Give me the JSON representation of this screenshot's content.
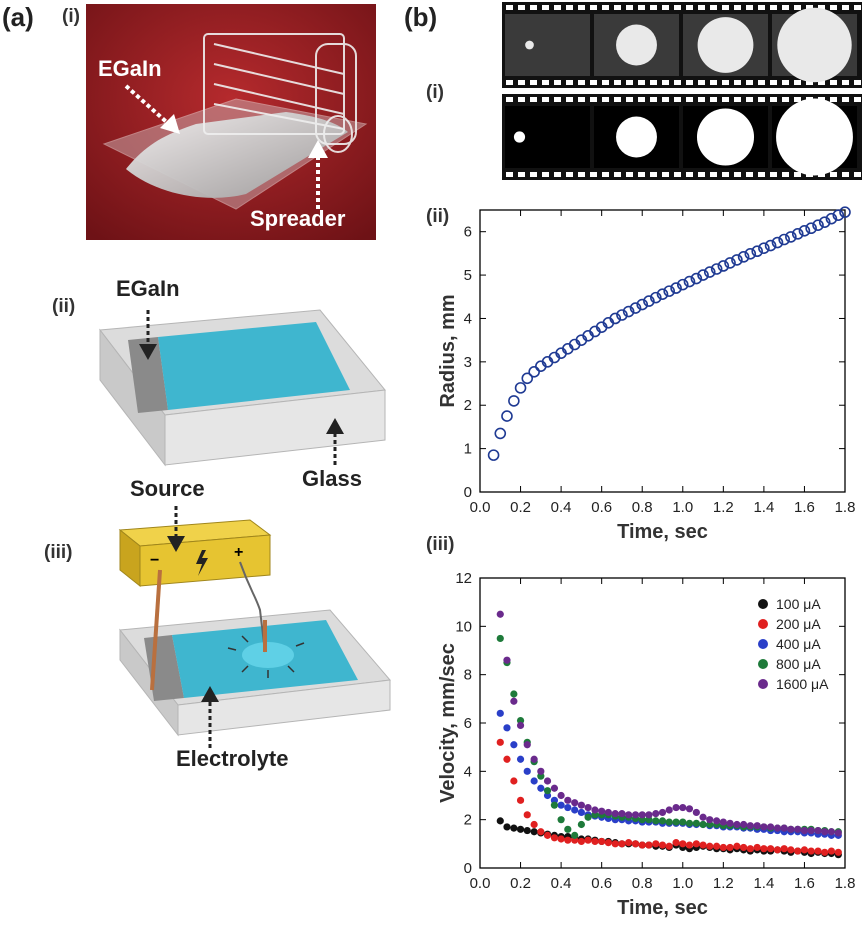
{
  "panel_a": {
    "label": "(a)",
    "sub_i": "(i)",
    "sub_ii": "(ii)",
    "sub_iii": "(iii)",
    "photo_labels": {
      "egain": "EGaIn",
      "spreader": "Spreader"
    },
    "schematic_ii_labels": {
      "egain": "EGaIn",
      "glass": "Glass"
    },
    "schematic_iii_labels": {
      "source": "Source",
      "minus": "−",
      "plus": "+",
      "electrolyte": "Electrolyte"
    }
  },
  "panel_b": {
    "label": "(b)",
    "sub_i": "(i)",
    "sub_ii": "(ii)",
    "sub_iii": "(iii)"
  },
  "colors": {
    "photo_background": "#9b1f24",
    "electrolyte_blue": "#3fb6cf",
    "metal_gray": "#8a8a8a",
    "glass": "#d9d9d9",
    "battery": "#e6c431",
    "wire": "#b9703f"
  },
  "filmstrip": {
    "top_radii": [
      0.07,
      0.33,
      0.45,
      0.6
    ],
    "bottom_radii": [
      0.09,
      0.33,
      0.46,
      0.62
    ]
  },
  "chart_data": [
    {
      "type": "scatter",
      "title": "",
      "xlabel": "Time, sec",
      "ylabel": "Radius, mm",
      "xlim": [
        0.0,
        1.8
      ],
      "ylim": [
        0,
        6.5
      ],
      "xticks": [
        "0.0",
        "0.2",
        "0.4",
        "0.6",
        "0.8",
        "1.0",
        "1.2",
        "1.4",
        "1.6",
        "1.8"
      ],
      "yticks": [
        "0",
        "1",
        "2",
        "3",
        "4",
        "5",
        "6"
      ],
      "marker": "open-circle",
      "color": "#1f3a93",
      "x": [
        0.067,
        0.1,
        0.133,
        0.167,
        0.2,
        0.233,
        0.267,
        0.3,
        0.333,
        0.367,
        0.4,
        0.433,
        0.467,
        0.5,
        0.533,
        0.567,
        0.6,
        0.633,
        0.667,
        0.7,
        0.733,
        0.767,
        0.8,
        0.833,
        0.867,
        0.9,
        0.933,
        0.967,
        1.0,
        1.033,
        1.067,
        1.1,
        1.133,
        1.167,
        1.2,
        1.233,
        1.267,
        1.3,
        1.333,
        1.367,
        1.4,
        1.433,
        1.467,
        1.5,
        1.533,
        1.567,
        1.6,
        1.633,
        1.667,
        1.7,
        1.733,
        1.767,
        1.8
      ],
      "y": [
        0.85,
        1.35,
        1.75,
        2.1,
        2.4,
        2.62,
        2.77,
        2.9,
        3.0,
        3.1,
        3.2,
        3.3,
        3.4,
        3.5,
        3.6,
        3.7,
        3.8,
        3.9,
        4.0,
        4.08,
        4.16,
        4.24,
        4.32,
        4.4,
        4.48,
        4.56,
        4.63,
        4.7,
        4.78,
        4.85,
        4.92,
        5.0,
        5.07,
        5.14,
        5.21,
        5.28,
        5.35,
        5.42,
        5.49,
        5.55,
        5.62,
        5.68,
        5.75,
        5.82,
        5.88,
        5.95,
        6.02,
        6.08,
        6.15,
        6.22,
        6.3,
        6.38,
        6.45
      ]
    },
    {
      "type": "scatter",
      "title": "",
      "xlabel": "Time, sec",
      "ylabel": "Velocity, mm/sec",
      "xlim": [
        0.0,
        1.8
      ],
      "ylim": [
        0,
        12
      ],
      "xticks": [
        "0.0",
        "0.2",
        "0.4",
        "0.6",
        "0.8",
        "1.0",
        "1.2",
        "1.4",
        "1.6",
        "1.8"
      ],
      "yticks": [
        "0",
        "2",
        "4",
        "6",
        "8",
        "10",
        "12"
      ],
      "legend_position": "top-right",
      "series": [
        {
          "name": "100 μA",
          "color": "#111111",
          "x": [
            0.1,
            0.133,
            0.167,
            0.2,
            0.233,
            0.267,
            0.3,
            0.333,
            0.367,
            0.4,
            0.433,
            0.467,
            0.5,
            0.533,
            0.567,
            0.6,
            0.633,
            0.667,
            0.7,
            0.733,
            0.767,
            0.8,
            0.833,
            0.867,
            0.9,
            0.933,
            0.967,
            1.0,
            1.033,
            1.067,
            1.1,
            1.133,
            1.167,
            1.2,
            1.233,
            1.267,
            1.3,
            1.333,
            1.367,
            1.4,
            1.433,
            1.467,
            1.5,
            1.533,
            1.567,
            1.6,
            1.633,
            1.667,
            1.7,
            1.733,
            1.767
          ],
          "y": [
            1.95,
            1.7,
            1.65,
            1.6,
            1.55,
            1.5,
            1.45,
            1.4,
            1.35,
            1.3,
            1.3,
            1.25,
            1.2,
            1.2,
            1.15,
            1.1,
            1.1,
            1.05,
            1.0,
            1.0,
            1.0,
            0.95,
            0.95,
            0.9,
            0.9,
            0.85,
            0.95,
            0.85,
            0.8,
            0.85,
            0.9,
            0.85,
            0.8,
            0.8,
            0.75,
            0.8,
            0.75,
            0.7,
            0.75,
            0.7,
            0.7,
            0.75,
            0.7,
            0.65,
            0.7,
            0.65,
            0.6,
            0.65,
            0.6,
            0.6,
            0.55
          ]
        },
        {
          "name": "200 μA",
          "color": "#e02020",
          "x": [
            0.1,
            0.133,
            0.167,
            0.2,
            0.233,
            0.267,
            0.3,
            0.333,
            0.367,
            0.4,
            0.433,
            0.467,
            0.5,
            0.533,
            0.567,
            0.6,
            0.633,
            0.667,
            0.7,
            0.733,
            0.767,
            0.8,
            0.833,
            0.867,
            0.9,
            0.933,
            0.967,
            1.0,
            1.033,
            1.067,
            1.1,
            1.133,
            1.167,
            1.2,
            1.233,
            1.267,
            1.3,
            1.333,
            1.367,
            1.4,
            1.433,
            1.467,
            1.5,
            1.533,
            1.567,
            1.6,
            1.633,
            1.667,
            1.7,
            1.733,
            1.767
          ],
          "y": [
            5.2,
            4.5,
            3.6,
            2.8,
            2.2,
            1.8,
            1.5,
            1.35,
            1.25,
            1.2,
            1.15,
            1.15,
            1.1,
            1.15,
            1.1,
            1.1,
            1.05,
            1.0,
            1.0,
            1.05,
            1.0,
            0.95,
            0.95,
            1.0,
            0.95,
            0.9,
            1.05,
            1.0,
            0.95,
            1.0,
            0.95,
            0.9,
            0.9,
            0.85,
            0.85,
            0.9,
            0.85,
            0.8,
            0.85,
            0.8,
            0.8,
            0.75,
            0.8,
            0.75,
            0.7,
            0.75,
            0.7,
            0.7,
            0.65,
            0.7,
            0.65
          ]
        },
        {
          "name": "400 μA",
          "color": "#2a3fc8",
          "x": [
            0.1,
            0.133,
            0.167,
            0.2,
            0.233,
            0.267,
            0.3,
            0.333,
            0.367,
            0.4,
            0.433,
            0.467,
            0.5,
            0.533,
            0.567,
            0.6,
            0.633,
            0.667,
            0.7,
            0.733,
            0.767,
            0.8,
            0.833,
            0.867,
            0.9,
            0.933,
            0.967,
            1.0,
            1.033,
            1.067,
            1.1,
            1.133,
            1.167,
            1.2,
            1.233,
            1.267,
            1.3,
            1.333,
            1.367,
            1.4,
            1.433,
            1.467,
            1.5,
            1.533,
            1.567,
            1.6,
            1.633,
            1.667,
            1.7,
            1.733,
            1.767
          ],
          "y": [
            6.4,
            5.8,
            5.1,
            4.5,
            4.0,
            3.6,
            3.3,
            3.0,
            2.8,
            2.6,
            2.5,
            2.4,
            2.3,
            2.2,
            2.15,
            2.1,
            2.05,
            2.0,
            2.0,
            1.95,
            1.95,
            1.9,
            1.9,
            1.9,
            1.85,
            1.85,
            1.85,
            1.85,
            1.8,
            1.8,
            1.8,
            1.75,
            1.75,
            1.7,
            1.7,
            1.7,
            1.65,
            1.65,
            1.6,
            1.6,
            1.55,
            1.55,
            1.5,
            1.5,
            1.5,
            1.45,
            1.45,
            1.4,
            1.4,
            1.35,
            1.35
          ]
        },
        {
          "name": "800 μA",
          "color": "#1e7a3a",
          "x": [
            0.1,
            0.133,
            0.167,
            0.2,
            0.233,
            0.267,
            0.3,
            0.333,
            0.367,
            0.4,
            0.433,
            0.467,
            0.5,
            0.533,
            0.567,
            0.6,
            0.633,
            0.667,
            0.7,
            0.733,
            0.767,
            0.8,
            0.833,
            0.867,
            0.9,
            0.933,
            0.967,
            1.0,
            1.033,
            1.067,
            1.1,
            1.133,
            1.167,
            1.2,
            1.233,
            1.267,
            1.3,
            1.333,
            1.367,
            1.4,
            1.433,
            1.467,
            1.5,
            1.533,
            1.567,
            1.6,
            1.633,
            1.667,
            1.7,
            1.733,
            1.767
          ],
          "y": [
            9.5,
            8.5,
            7.2,
            6.1,
            5.2,
            4.4,
            3.8,
            3.2,
            2.6,
            2.0,
            1.6,
            1.35,
            1.8,
            2.1,
            2.2,
            2.2,
            2.2,
            2.15,
            2.1,
            2.1,
            2.05,
            2.0,
            2.0,
            1.95,
            1.95,
            1.9,
            1.9,
            1.9,
            1.85,
            1.85,
            1.8,
            1.8,
            1.8,
            1.75,
            1.75,
            1.75,
            1.7,
            1.7,
            1.7,
            1.7,
            1.65,
            1.65,
            1.65,
            1.6,
            1.6,
            1.6,
            1.6,
            1.55,
            1.55,
            1.5,
            1.5
          ]
        },
        {
          "name": "1600 μA",
          "color": "#6a2a8c",
          "x": [
            0.1,
            0.133,
            0.167,
            0.2,
            0.233,
            0.267,
            0.3,
            0.333,
            0.367,
            0.4,
            0.433,
            0.467,
            0.5,
            0.533,
            0.567,
            0.6,
            0.633,
            0.667,
            0.7,
            0.733,
            0.767,
            0.8,
            0.833,
            0.867,
            0.9,
            0.933,
            0.967,
            1.0,
            1.033,
            1.067,
            1.1,
            1.133,
            1.167,
            1.2,
            1.233,
            1.267,
            1.3,
            1.333,
            1.367,
            1.4,
            1.433,
            1.467,
            1.5,
            1.533,
            1.567,
            1.6,
            1.633,
            1.667,
            1.7,
            1.733,
            1.767
          ],
          "y": [
            10.5,
            8.6,
            6.9,
            5.9,
            5.1,
            4.5,
            4.0,
            3.6,
            3.3,
            3.0,
            2.8,
            2.7,
            2.6,
            2.5,
            2.4,
            2.35,
            2.3,
            2.25,
            2.25,
            2.2,
            2.2,
            2.2,
            2.2,
            2.25,
            2.3,
            2.4,
            2.5,
            2.5,
            2.45,
            2.3,
            2.1,
            2.0,
            1.95,
            1.9,
            1.85,
            1.8,
            1.8,
            1.75,
            1.75,
            1.7,
            1.7,
            1.65,
            1.65,
            1.6,
            1.6,
            1.55,
            1.55,
            1.55,
            1.5,
            1.5,
            1.45
          ]
        }
      ]
    }
  ]
}
